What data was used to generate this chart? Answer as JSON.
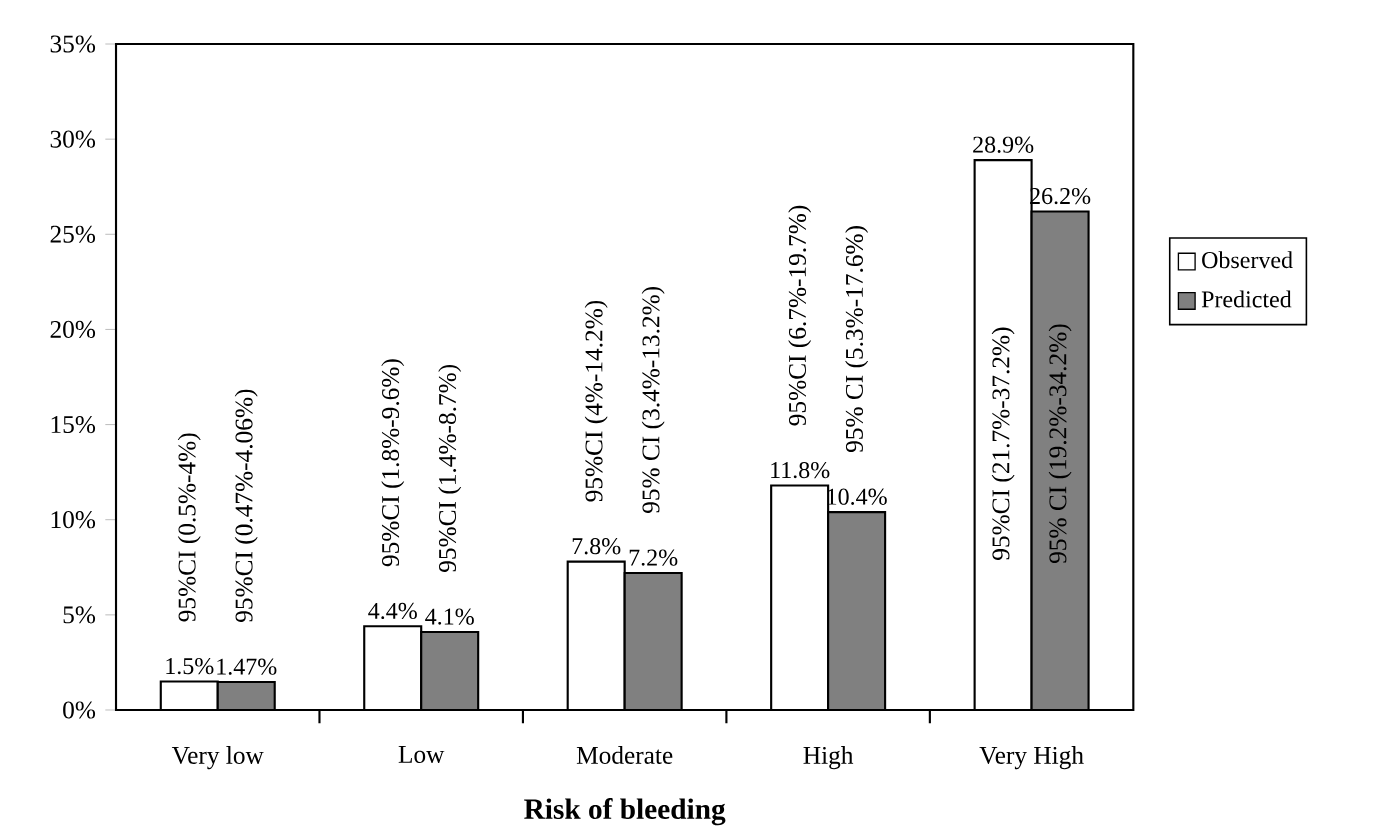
{
  "chart_data": {
    "type": "bar",
    "xlabel": "Risk of bleeding",
    "categories": [
      "Very low",
      "Low",
      "Moderate",
      "High",
      "Very High"
    ],
    "series": [
      {
        "name": "Observed",
        "color": "#ffffff",
        "values": [
          1.5,
          4.4,
          7.8,
          11.8,
          28.9
        ],
        "value_labels": [
          "1.5%",
          "4.4%",
          "7.8%",
          "11.8%",
          "28.9%"
        ]
      },
      {
        "name": "Predicted",
        "color": "#808080",
        "values": [
          1.47,
          4.1,
          7.2,
          10.4,
          26.2
        ],
        "value_labels": [
          "1.47%",
          "4.1%",
          "7.2%",
          "10.4%",
          "26.2%"
        ]
      }
    ],
    "ylim": [
      0,
      35
    ],
    "yticks": [
      {
        "value": 0,
        "label": "0%"
      },
      {
        "value": 5,
        "label": "5%"
      },
      {
        "value": 10,
        "label": "10%"
      },
      {
        "value": 15,
        "label": "15%"
      },
      {
        "value": 20,
        "label": "20%"
      },
      {
        "value": 25,
        "label": "25%"
      },
      {
        "value": 30,
        "label": "30%"
      },
      {
        "value": 35,
        "label": "35%"
      }
    ],
    "legend": "right",
    "grid": false,
    "annotations": [
      {
        "text": "95%CI (0.5%-4%)",
        "x": "Very low",
        "y": 1.5
      },
      {
        "text": "95%CI (0.47%-4.06%)",
        "x": "Very low",
        "y": 1.47
      },
      {
        "text": "95%CI (1.8%-9.6%)",
        "x": "Low",
        "y": 4.4
      },
      {
        "text": "95%CI (1.4%-8.7%)",
        "x": "Low",
        "y": 4.1
      },
      {
        "text": "95%CI (4%-14.2%)",
        "x": "Moderate",
        "y": 7.8
      },
      {
        "text": "95% CI (3.4%-13.2%)",
        "x": "Moderate",
        "y": 7.2
      },
      {
        "text": "95%CI (6.7%-19.7%)",
        "x": "High",
        "y": 11.8
      },
      {
        "text": "95% CI (5.3%-17.6%)",
        "x": "High",
        "y": 10.4
      },
      {
        "text": "95%CI (21.7%-37.2%)",
        "x": "Very High",
        "y": 14
      },
      {
        "text": "95% CI (19.2%-34.2%)",
        "x": "Very High",
        "y": 14
      }
    ]
  }
}
